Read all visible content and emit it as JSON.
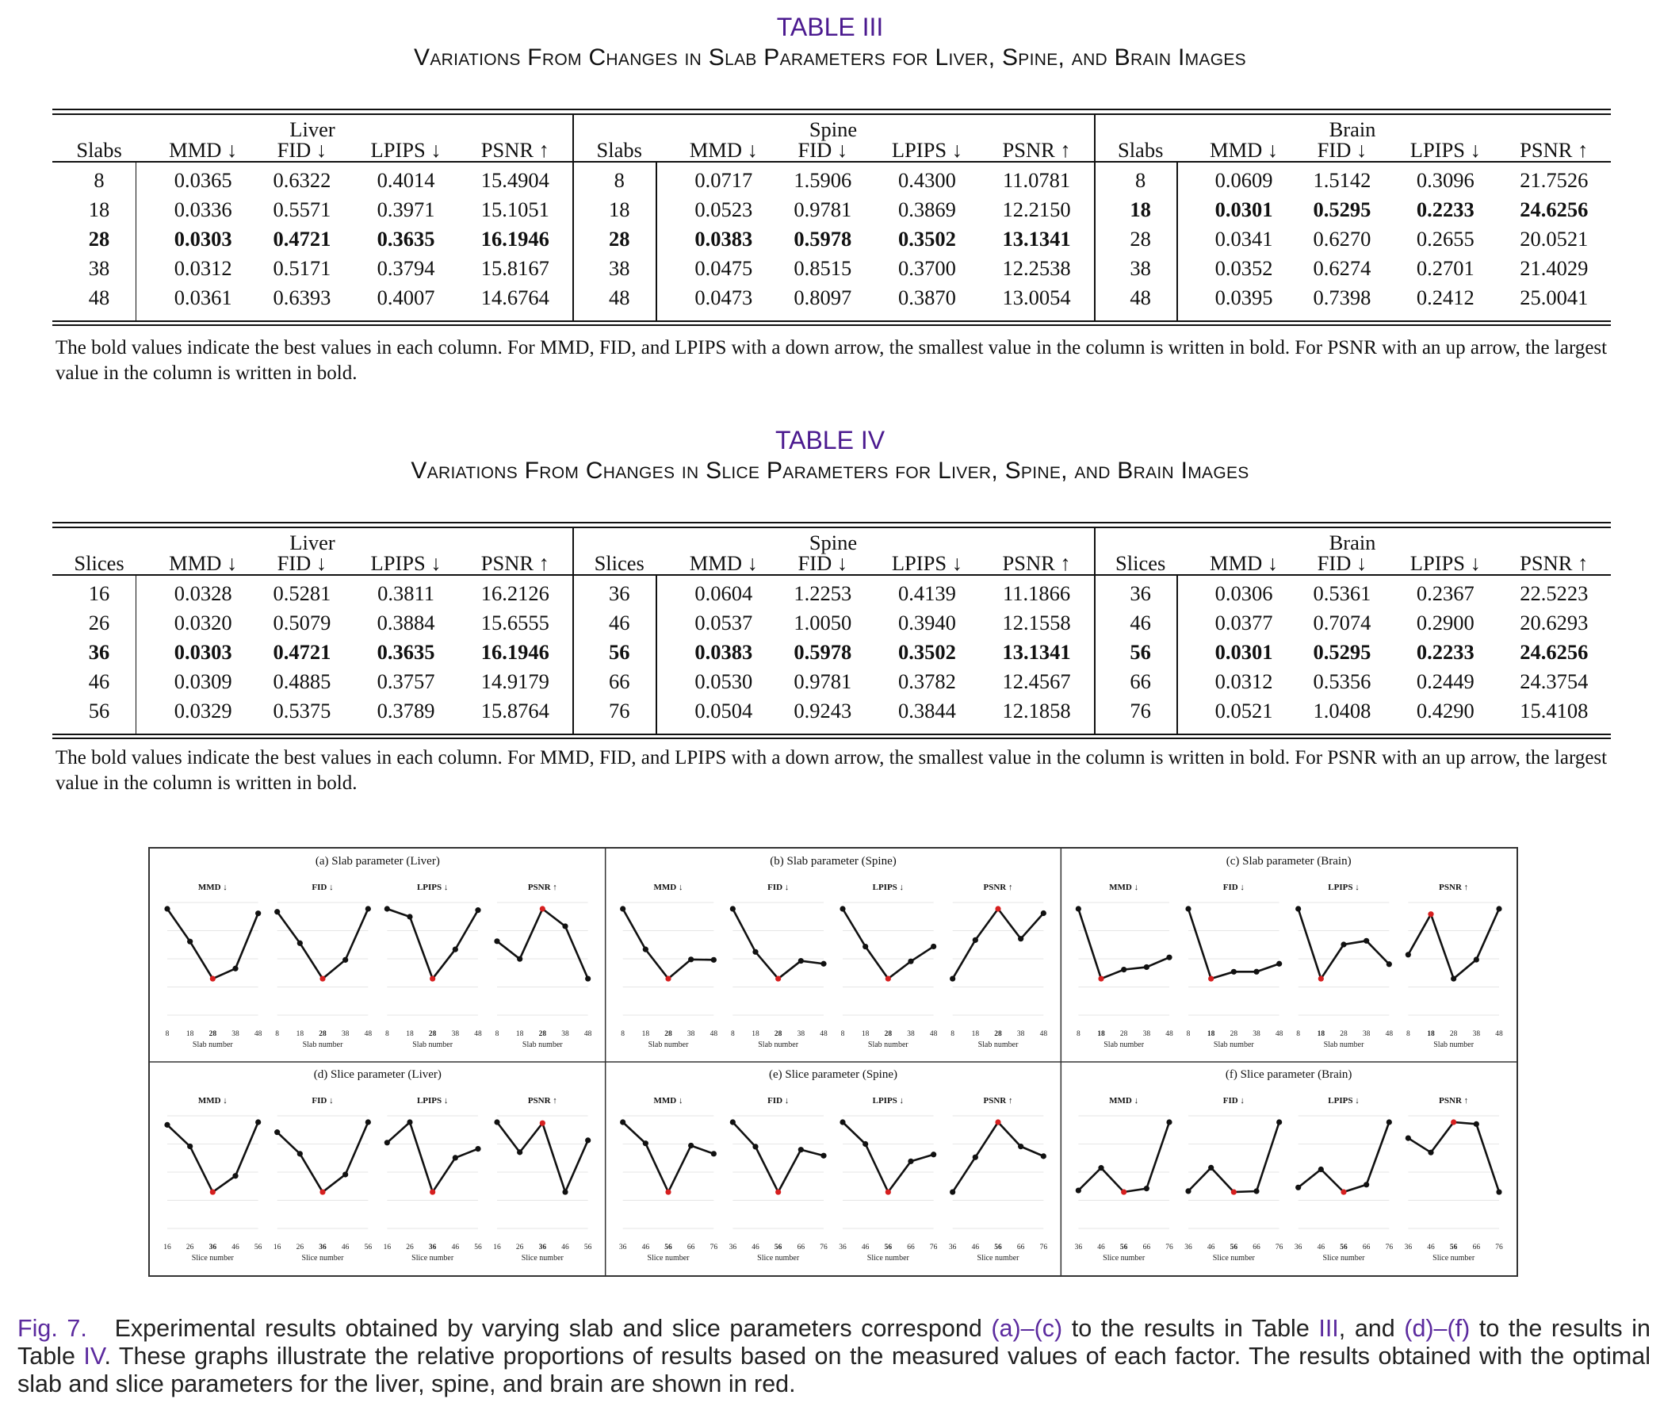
{
  "table3": {
    "number": "TABLE III",
    "title": "Variations From Changes in Slab Parameters for Liver, Spine, and Brain Images",
    "groups": [
      "Liver",
      "Spine",
      "Brain"
    ],
    "col_headers": [
      "Slabs",
      "MMD ↓",
      "FID ↓",
      "LPIPS ↓",
      "PSNR ↑"
    ],
    "rows": {
      "liver": [
        [
          "8",
          "0.0365",
          "0.6322",
          "0.4014",
          "15.4904"
        ],
        [
          "18",
          "0.0336",
          "0.5571",
          "0.3971",
          "15.1051"
        ],
        [
          "28",
          "0.0303",
          "0.4721",
          "0.3635",
          "16.1946"
        ],
        [
          "38",
          "0.0312",
          "0.5171",
          "0.3794",
          "15.8167"
        ],
        [
          "48",
          "0.0361",
          "0.6393",
          "0.4007",
          "14.6764"
        ]
      ],
      "spine": [
        [
          "8",
          "0.0717",
          "1.5906",
          "0.4300",
          "11.0781"
        ],
        [
          "18",
          "0.0523",
          "0.9781",
          "0.3869",
          "12.2150"
        ],
        [
          "28",
          "0.0383",
          "0.5978",
          "0.3502",
          "13.1341"
        ],
        [
          "38",
          "0.0475",
          "0.8515",
          "0.3700",
          "12.2538"
        ],
        [
          "48",
          "0.0473",
          "0.8097",
          "0.3870",
          "13.0054"
        ]
      ],
      "brain": [
        [
          "8",
          "0.0609",
          "1.5142",
          "0.3096",
          "21.7526"
        ],
        [
          "18",
          "0.0301",
          "0.5295",
          "0.2233",
          "24.6256"
        ],
        [
          "28",
          "0.0341",
          "0.6270",
          "0.2655",
          "20.0521"
        ],
        [
          "38",
          "0.0352",
          "0.6274",
          "0.2701",
          "21.4029"
        ],
        [
          "48",
          "0.0395",
          "0.7398",
          "0.2412",
          "25.0041"
        ]
      ]
    },
    "bold": {
      "liver": [
        [
          2,
          0
        ],
        [
          2,
          1
        ],
        [
          2,
          2
        ],
        [
          2,
          3
        ],
        [
          2,
          4
        ]
      ],
      "spine": [
        [
          2,
          0
        ],
        [
          2,
          1
        ],
        [
          2,
          2
        ],
        [
          2,
          3
        ],
        [
          2,
          4
        ]
      ],
      "brain": [
        [
          1,
          0
        ],
        [
          1,
          1
        ],
        [
          1,
          2
        ],
        [
          1,
          3
        ],
        [
          4,
          4
        ]
      ]
    },
    "note": "The bold values indicate the best values in each column. For MMD, FID, and LPIPS with a down arrow, the smallest value in the column is written in bold. For PSNR with an up arrow, the largest value in the column is written in bold."
  },
  "table4": {
    "number": "TABLE IV",
    "title": "Variations From Changes in Slice Parameters for Liver, Spine, and Brain Images",
    "groups": [
      "Liver",
      "Spine",
      "Brain"
    ],
    "col_headers": [
      "Slices",
      "MMD ↓",
      "FID ↓",
      "LPIPS ↓",
      "PSNR ↑"
    ],
    "rows": {
      "liver": [
        [
          "16",
          "0.0328",
          "0.5281",
          "0.3811",
          "16.2126"
        ],
        [
          "26",
          "0.0320",
          "0.5079",
          "0.3884",
          "15.6555"
        ],
        [
          "36",
          "0.0303",
          "0.4721",
          "0.3635",
          "16.1946"
        ],
        [
          "46",
          "0.0309",
          "0.4885",
          "0.3757",
          "14.9179"
        ],
        [
          "56",
          "0.0329",
          "0.5375",
          "0.3789",
          "15.8764"
        ]
      ],
      "spine": [
        [
          "36",
          "0.0604",
          "1.2253",
          "0.4139",
          "11.1866"
        ],
        [
          "46",
          "0.0537",
          "1.0050",
          "0.3940",
          "12.1558"
        ],
        [
          "56",
          "0.0383",
          "0.5978",
          "0.3502",
          "13.1341"
        ],
        [
          "66",
          "0.0530",
          "0.9781",
          "0.3782",
          "12.4567"
        ],
        [
          "76",
          "0.0504",
          "0.9243",
          "0.3844",
          "12.1858"
        ]
      ],
      "brain": [
        [
          "36",
          "0.0306",
          "0.5361",
          "0.2367",
          "22.5223"
        ],
        [
          "46",
          "0.0377",
          "0.7074",
          "0.2900",
          "20.6293"
        ],
        [
          "56",
          "0.0301",
          "0.5295",
          "0.2233",
          "24.6256"
        ],
        [
          "66",
          "0.0312",
          "0.5356",
          "0.2449",
          "24.3754"
        ],
        [
          "76",
          "0.0521",
          "1.0408",
          "0.4290",
          "15.4108"
        ]
      ]
    },
    "bold": {
      "liver": [
        [
          2,
          0
        ],
        [
          2,
          1
        ],
        [
          2,
          2
        ],
        [
          2,
          3
        ],
        [
          0,
          4
        ]
      ],
      "spine": [
        [
          2,
          0
        ],
        [
          2,
          1
        ],
        [
          2,
          2
        ],
        [
          2,
          3
        ],
        [
          2,
          4
        ]
      ],
      "brain": [
        [
          2,
          0
        ],
        [
          2,
          1
        ],
        [
          2,
          2
        ],
        [
          2,
          3
        ],
        [
          2,
          4
        ]
      ]
    },
    "note": "The bold values indicate the best values in each column. For MMD, FID, and LPIPS with a down arrow, the smallest value in the column is written in bold. For PSNR with an up arrow, the largest value in the column is written in bold."
  },
  "figure": {
    "panel_titles": [
      "(a) Slab parameter (Liver)",
      "(b) Slab parameter (Spine)",
      "(c) Slab parameter (Brain)",
      "(d) Slice parameter (Liver)",
      "(e) Slice parameter (Spine)",
      "(f) Slice parameter (Brain)"
    ],
    "metric_labels": [
      "MMD ↓",
      "FID ↓",
      "LPIPS ↓",
      "PSNR ↑"
    ],
    "x_label_slab": "Slab number",
    "x_label_slice": "Slice number",
    "highlight_color": "#d61f1f",
    "line_color": "#111111"
  },
  "chart_data": [
    {
      "type": "line",
      "title": "(a) Slab parameter (Liver)",
      "x": [
        "8",
        "18",
        "28",
        "38",
        "48"
      ],
      "highlight_index": 2,
      "xlabel": "Slab number",
      "series": [
        {
          "name": "MMD ↓",
          "values": [
            0.0365,
            0.0336,
            0.0303,
            0.0312,
            0.0361
          ]
        },
        {
          "name": "FID ↓",
          "values": [
            0.6322,
            0.5571,
            0.4721,
            0.5171,
            0.6393
          ]
        },
        {
          "name": "LPIPS ↓",
          "values": [
            0.4014,
            0.3971,
            0.3635,
            0.3794,
            0.4007
          ]
        },
        {
          "name": "PSNR ↑",
          "values": [
            15.4904,
            15.1051,
            16.1946,
            15.8167,
            14.6764
          ]
        }
      ]
    },
    {
      "type": "line",
      "title": "(b) Slab parameter (Spine)",
      "x": [
        "8",
        "18",
        "28",
        "38",
        "48"
      ],
      "highlight_index": 2,
      "xlabel": "Slab number",
      "series": [
        {
          "name": "MMD ↓",
          "values": [
            0.0717,
            0.0523,
            0.0383,
            0.0475,
            0.0473
          ]
        },
        {
          "name": "FID ↓",
          "values": [
            1.5906,
            0.9781,
            0.5978,
            0.8515,
            0.8097
          ]
        },
        {
          "name": "LPIPS ↓",
          "values": [
            0.43,
            0.3869,
            0.3502,
            0.37,
            0.387
          ]
        },
        {
          "name": "PSNR ↑",
          "values": [
            11.0781,
            12.215,
            13.1341,
            12.2538,
            13.0054
          ]
        }
      ]
    },
    {
      "type": "line",
      "title": "(c) Slab parameter (Brain)",
      "x": [
        "8",
        "18",
        "28",
        "38",
        "48"
      ],
      "highlight_index": 1,
      "xlabel": "Slab number",
      "series": [
        {
          "name": "MMD ↓",
          "values": [
            0.0609,
            0.0301,
            0.0341,
            0.0352,
            0.0395
          ]
        },
        {
          "name": "FID ↓",
          "values": [
            1.5142,
            0.5295,
            0.627,
            0.6274,
            0.7398
          ]
        },
        {
          "name": "LPIPS ↓",
          "values": [
            0.3096,
            0.2233,
            0.2655,
            0.2701,
            0.2412
          ]
        },
        {
          "name": "PSNR ↑",
          "values": [
            21.7526,
            24.6256,
            20.0521,
            21.4029,
            25.0041
          ]
        }
      ]
    },
    {
      "type": "line",
      "title": "(d) Slice parameter (Liver)",
      "x": [
        "16",
        "26",
        "36",
        "46",
        "56"
      ],
      "highlight_index": 2,
      "xlabel": "Slice number",
      "series": [
        {
          "name": "MMD ↓",
          "values": [
            0.0328,
            0.032,
            0.0303,
            0.0309,
            0.0329
          ]
        },
        {
          "name": "FID ↓",
          "values": [
            0.5281,
            0.5079,
            0.4721,
            0.4885,
            0.5375
          ]
        },
        {
          "name": "LPIPS ↓",
          "values": [
            0.3811,
            0.3884,
            0.3635,
            0.3757,
            0.3789
          ]
        },
        {
          "name": "PSNR ↑",
          "values": [
            16.2126,
            15.6555,
            16.1946,
            14.9179,
            15.8764
          ]
        }
      ]
    },
    {
      "type": "line",
      "title": "(e) Slice parameter (Spine)",
      "x": [
        "36",
        "46",
        "56",
        "66",
        "76"
      ],
      "highlight_index": 2,
      "xlabel": "Slice number",
      "series": [
        {
          "name": "MMD ↓",
          "values": [
            0.0604,
            0.0537,
            0.0383,
            0.053,
            0.0504
          ]
        },
        {
          "name": "FID ↓",
          "values": [
            1.2253,
            1.005,
            0.5978,
            0.9781,
            0.9243
          ]
        },
        {
          "name": "LPIPS ↓",
          "values": [
            0.4139,
            0.394,
            0.3502,
            0.3782,
            0.3844
          ]
        },
        {
          "name": "PSNR ↑",
          "values": [
            11.1866,
            12.1558,
            13.1341,
            12.4567,
            12.1858
          ]
        }
      ]
    },
    {
      "type": "line",
      "title": "(f) Slice parameter (Brain)",
      "x": [
        "36",
        "46",
        "56",
        "66",
        "76"
      ],
      "highlight_index": 2,
      "xlabel": "Slice number",
      "series": [
        {
          "name": "MMD ↓",
          "values": [
            0.0306,
            0.0377,
            0.0301,
            0.0312,
            0.0521
          ]
        },
        {
          "name": "FID ↓",
          "values": [
            0.5361,
            0.7074,
            0.5295,
            0.5356,
            1.0408
          ]
        },
        {
          "name": "LPIPS ↓",
          "values": [
            0.2367,
            0.29,
            0.2233,
            0.2449,
            0.429
          ]
        },
        {
          "name": "PSNR ↑",
          "values": [
            22.5223,
            20.6293,
            24.6256,
            24.3754,
            15.4108
          ]
        }
      ]
    }
  ],
  "caption": {
    "label": "Fig. 7.",
    "part1": "Experimental results obtained by varying slab and slice parameters correspond ",
    "ref_ac": "(a)–(c)",
    "part2": " to the results in Table ",
    "ref_t3": "III",
    "part3": ", and ",
    "ref_df": "(d)–(f)",
    "part4": " to the results in Table ",
    "ref_t4": "IV",
    "part5": ". These graphs illustrate the relative proportions of results based on the measured values of each factor. The results obtained with the optimal slab and slice parameters for the liver, spine, and brain are shown in red."
  }
}
